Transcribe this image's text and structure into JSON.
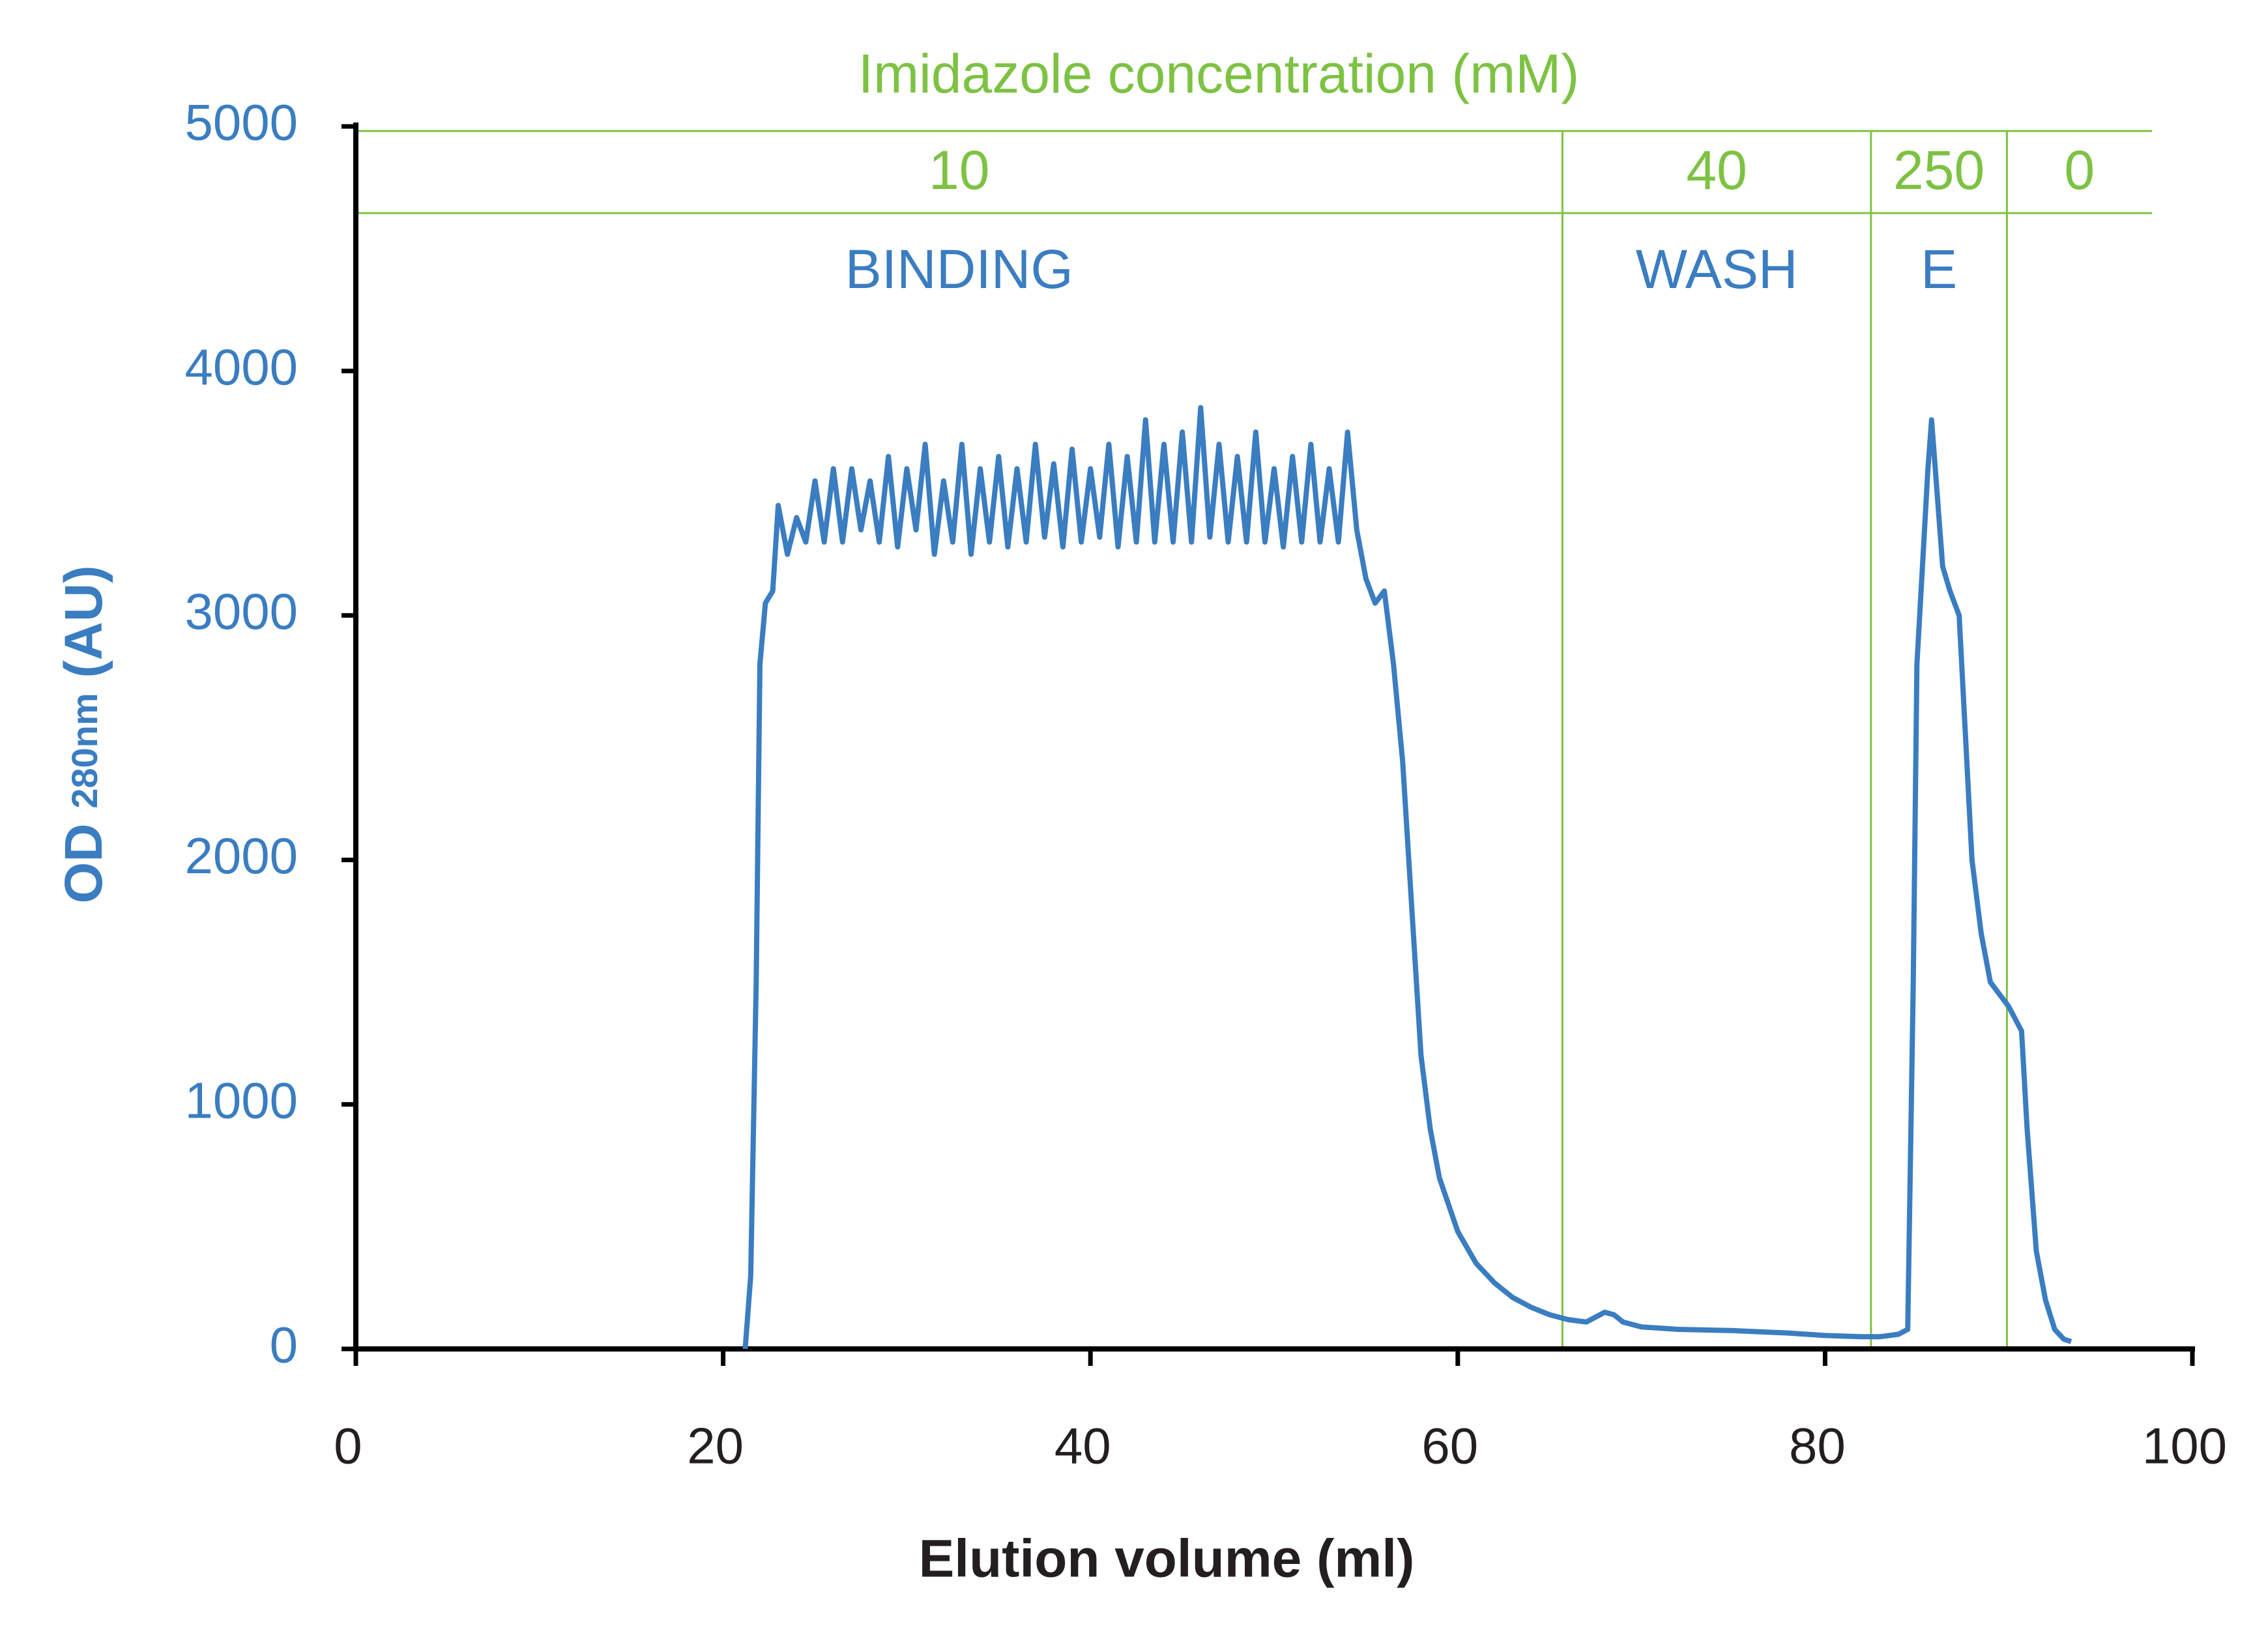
{
  "chart_data": {
    "type": "line",
    "title": "Imidazole concentration (mM)",
    "x_label": "Elution volume (ml)",
    "y_label": "OD",
    "y_label_sub": "280nm",
    "y_label_tail": "(AU)",
    "color": "#3a7dc1",
    "annotation_color": "#7dc242",
    "xlim": [
      0,
      100
    ],
    "ylim": [
      0,
      5000
    ],
    "xticks": [
      0,
      20,
      40,
      60,
      80,
      100
    ],
    "yticks": [
      0,
      1000,
      2000,
      3000,
      4000,
      5000
    ],
    "regions": [
      {
        "concentration": "10",
        "phase": "BINDING",
        "start": 0,
        "end": 65.7
      },
      {
        "concentration": "40",
        "phase": "WASH",
        "start": 65.7,
        "end": 82.5
      },
      {
        "concentration": "250",
        "phase": "E",
        "start": 82.5,
        "end": 89.9
      },
      {
        "concentration": "0",
        "start": 89.9,
        "end": 97.8
      }
    ],
    "x": [
      21.2,
      21.5,
      21.8,
      22.0,
      22.3,
      22.7,
      23,
      23.5,
      24,
      24.5,
      25,
      25.5,
      26,
      26.5,
      27,
      27.5,
      28,
      28.5,
      29,
      29.5,
      30,
      30.5,
      31,
      31.5,
      32,
      32.5,
      33,
      33.5,
      34,
      34.5,
      35,
      35.5,
      36,
      36.5,
      37,
      37.5,
      38,
      38.5,
      39,
      39.5,
      40,
      40.5,
      41,
      41.5,
      42,
      42.5,
      43,
      43.5,
      44,
      44.5,
      45,
      45.5,
      46,
      46.5,
      47,
      47.5,
      48,
      48.5,
      49,
      49.5,
      50,
      50.5,
      51,
      51.5,
      52,
      52.5,
      53,
      53.5,
      54,
      54.5,
      55,
      55.5,
      56,
      56.5,
      57,
      57.5,
      58,
      58.5,
      59,
      60,
      61,
      62,
      63,
      64,
      65,
      66,
      67,
      67.5,
      68,
      68.5,
      69,
      70,
      72,
      75,
      78,
      80,
      82,
      83,
      84,
      84.5,
      84.8,
      85,
      85.3,
      85.6,
      85.8,
      86.1,
      86.4,
      86.8,
      87.3,
      88,
      88.5,
      89,
      90,
      90.7,
      91,
      91.5,
      92,
      92.5,
      93,
      93.4
    ],
    "values": [
      0,
      300,
      1500,
      2800,
      3050,
      3100,
      3450,
      3250,
      3400,
      3300,
      3550,
      3300,
      3600,
      3300,
      3600,
      3350,
      3550,
      3300,
      3650,
      3280,
      3600,
      3350,
      3700,
      3250,
      3550,
      3300,
      3700,
      3250,
      3600,
      3300,
      3650,
      3280,
      3600,
      3300,
      3700,
      3320,
      3620,
      3280,
      3680,
      3300,
      3600,
      3320,
      3700,
      3280,
      3650,
      3300,
      3800,
      3300,
      3700,
      3300,
      3750,
      3300,
      3850,
      3320,
      3700,
      3300,
      3650,
      3300,
      3750,
      3300,
      3600,
      3280,
      3650,
      3300,
      3700,
      3300,
      3600,
      3300,
      3750,
      3350,
      3150,
      3050,
      3100,
      2800,
      2400,
      1800,
      1200,
      900,
      700,
      480,
      350,
      270,
      210,
      170,
      140,
      120,
      110,
      130,
      150,
      140,
      110,
      90,
      80,
      75,
      65,
      55,
      50,
      50,
      60,
      80,
      1500,
      2800,
      3200,
      3600,
      3800,
      3500,
      3200,
      3100,
      3000,
      2000,
      1700,
      1500,
      1400,
      1300,
      900,
      400,
      200,
      80,
      40,
      30
    ]
  }
}
